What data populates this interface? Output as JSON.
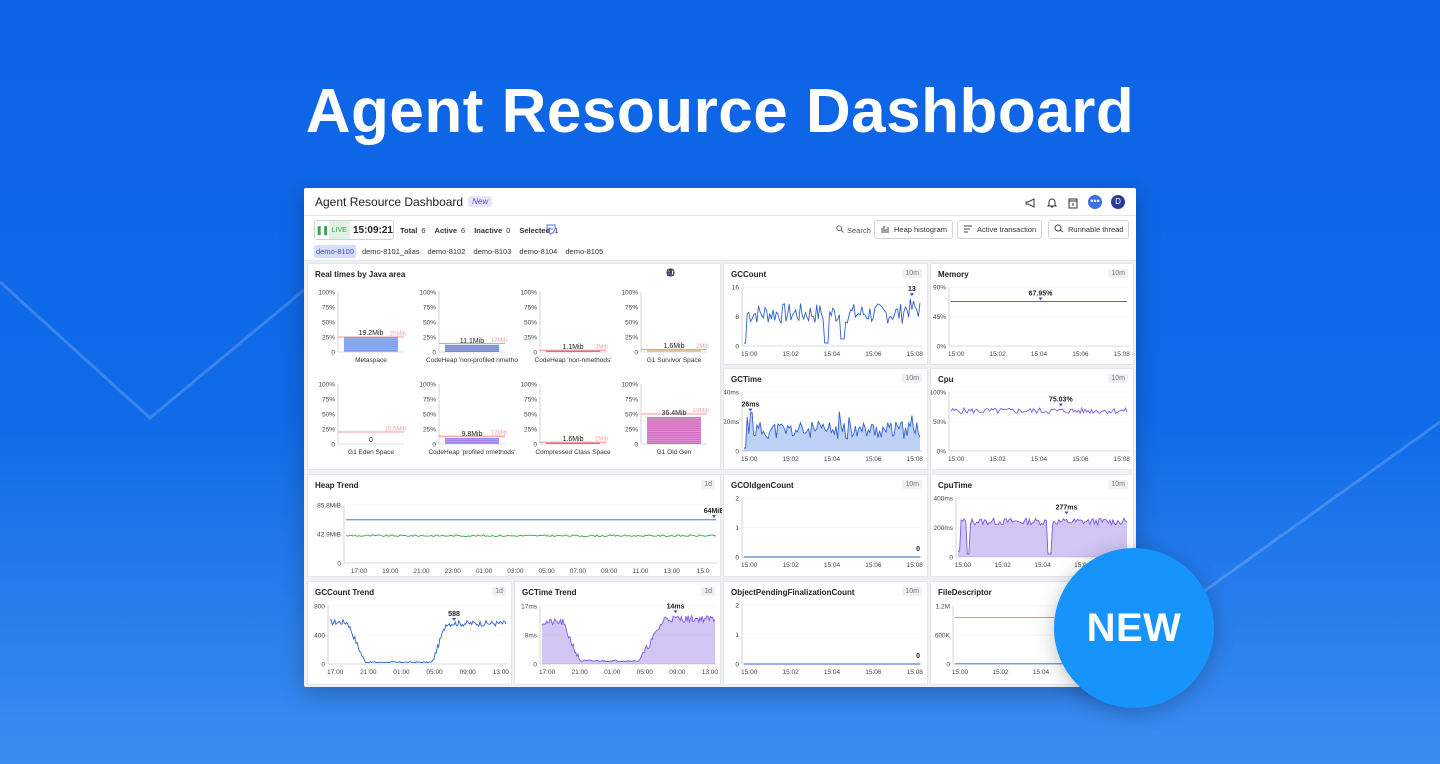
{
  "hero_title": "Agent Resource Dashboard",
  "new_badge": "NEW",
  "colors": {
    "background": "#0f6be8",
    "accent": "#3d6fe8",
    "purple": "#7b5be0",
    "green": "#3aa357",
    "red": "#e57a7a"
  },
  "app": {
    "title": "Agent Resource Dashboard",
    "new_tag": "New",
    "icons": [
      "megaphone-icon",
      "bell-icon",
      "calendar-icon",
      "chat-icon"
    ],
    "avatar": "D"
  },
  "toolbar": {
    "live_label": "LIVE",
    "time": "15:09:21",
    "stats": [
      {
        "label": "Total",
        "value": "6"
      },
      {
        "label": "Active",
        "value": "6"
      },
      {
        "label": "Inactive",
        "value": "0"
      },
      {
        "label": "Selected",
        "value": "1"
      }
    ],
    "search": "Search",
    "buttons": [
      "Heap histogram",
      "Active transaction",
      "Runnable thread"
    ],
    "agents": [
      "demo-8100",
      "demo-8101_alias",
      "demo-8102",
      "demo-8103",
      "demo-8104",
      "demo-8105"
    ]
  },
  "panels": {
    "realtime": {
      "title": "Real times by Java area",
      "y_ticks": [
        "100%",
        "75%",
        "50%",
        "25%",
        "0"
      ],
      "areas": [
        {
          "name": "Metaspace",
          "value_label": "19.2Mib",
          "limit_label": "20Mib",
          "fill": 0.25,
          "limit": 0.25,
          "color": "#4a7be8"
        },
        {
          "name": "CodeHeap 'non-profiled nmetho",
          "value_label": "11.1Mib",
          "limit_label": "12Mib",
          "fill": 0.12,
          "limit": 0.14,
          "color": "#3f63c9"
        },
        {
          "name": "CodeHeap 'non-nmethods'",
          "value_label": "1.1Mib",
          "limit_label": "3Mib",
          "fill": 0.02,
          "limit": 0.03,
          "color": "#a34d9a"
        },
        {
          "name": "G1 Survivor Space",
          "value_label": "1.6Mib",
          "limit_label": "2Mib",
          "fill": 0.03,
          "limit": 0.04,
          "color": "#d9a13a"
        },
        {
          "name": "G1 Eden Space",
          "value_label": "0",
          "limit_label": "15.5Mib",
          "fill": 0.0,
          "limit": 0.2,
          "color": "#4a7be8"
        },
        {
          "name": "CodeHeap 'profiled nmethods'",
          "value_label": "9.8Mib",
          "limit_label": "12Mib",
          "fill": 0.1,
          "limit": 0.13,
          "color": "#7b5be0"
        },
        {
          "name": "Compressed Class Space",
          "value_label": "1.6Mib",
          "limit_label": "2Mib",
          "fill": 0.02,
          "limit": 0.03,
          "color": "#c44f7b"
        },
        {
          "name": "G1 Old Gen",
          "value_label": "36.4Mib",
          "limit_label": "48Mib",
          "fill": 0.45,
          "limit": 0.5,
          "color": "#c23fb2"
        }
      ]
    },
    "gccount": {
      "title": "GCCount",
      "badge": "10m",
      "y_ticks": [
        "16",
        "8",
        "0"
      ],
      "x_ticks": [
        "15:00",
        "15:02",
        "15:04",
        "15:06",
        "15:08"
      ],
      "last_label": "13"
    },
    "memory": {
      "title": "Memory",
      "badge": "10m",
      "y_ticks": [
        "90%",
        "45%",
        "0%"
      ],
      "x_ticks": [
        "15:00",
        "15:02",
        "15:04",
        "15:06",
        "15:08"
      ],
      "last_label": "67.95%"
    },
    "gctime": {
      "title": "GCTime",
      "badge": "10m",
      "y_ticks": [
        "40ms",
        "20ms",
        "0"
      ],
      "x_ticks": [
        "15:00",
        "15:02",
        "15:04",
        "15:06",
        "15:08"
      ],
      "last_label": "26ms"
    },
    "cpu": {
      "title": "Cpu",
      "badge": "10m",
      "y_ticks": [
        "100%",
        "50%",
        "0%"
      ],
      "x_ticks": [
        "15:00",
        "15:02",
        "15:04",
        "15:06",
        "15:08"
      ],
      "last_label": "75.03%"
    },
    "heaptrend": {
      "title": "Heap Trend",
      "badge": "1d",
      "y_ticks": [
        "85.8MiB",
        "42.9MiB",
        "0"
      ],
      "x_ticks": [
        "17:00",
        "19:00",
        "21:00",
        "23:00",
        "01:00",
        "03:00",
        "05:00",
        "07:00",
        "09:00",
        "11:00",
        "13:00",
        "15:0"
      ],
      "last_label": "64MiB"
    },
    "gcoldgen": {
      "title": "GCOldgenCount",
      "badge": "10m",
      "y_ticks": [
        "2",
        "1",
        "0"
      ],
      "x_ticks": [
        "15:00",
        "15:02",
        "15:04",
        "15:06",
        "15:08"
      ],
      "last_label": "0"
    },
    "cputime": {
      "title": "CpuTime",
      "badge": "10m",
      "y_ticks": [
        "400ms",
        "200ms",
        "0"
      ],
      "x_ticks": [
        "15:00",
        "15:02",
        "15:04",
        "15:06",
        "15:08"
      ],
      "last_label": "277ms"
    },
    "gccounttrend": {
      "title": "GCCount Trend",
      "badge": "1d",
      "y_ticks": [
        "800",
        "400",
        "0"
      ],
      "x_ticks": [
        "17:00",
        "21:00",
        "01:00",
        "05:00",
        "09:00",
        "13:00"
      ],
      "last_label": "588"
    },
    "gctimetrend": {
      "title": "GCTime Trend",
      "badge": "1d",
      "y_ticks": [
        "17ms",
        "8ms",
        "0"
      ],
      "x_ticks": [
        "17:00",
        "21:00",
        "01:00",
        "05:00",
        "09:00",
        "13:00"
      ],
      "last_label": "14ms"
    },
    "objpending": {
      "title": "ObjectPendingFinalizationCount",
      "badge": "10m",
      "y_ticks": [
        "2",
        "1",
        "0"
      ],
      "x_ticks": [
        "15:00",
        "15:02",
        "15:04",
        "15:06",
        "15:08"
      ],
      "last_label": "0"
    },
    "filedesc": {
      "title": "FileDescriptor",
      "badge": "10m",
      "y_ticks": [
        "1.2M",
        "600K",
        "0"
      ],
      "x_ticks": [
        "15:00",
        "15:02",
        "15:04",
        "15:06",
        "15:08"
      ],
      "last_label": ""
    }
  }
}
